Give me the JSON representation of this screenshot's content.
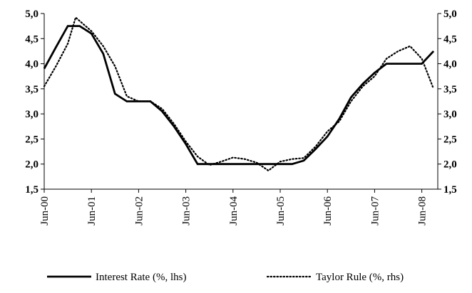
{
  "chart_data": {
    "type": "line",
    "x_tick_labels": [
      "Jun-00",
      "Jun-01",
      "Jun-02",
      "Jun-03",
      "Jun-04",
      "Jun-05",
      "Jun-06",
      "Jun-07",
      "Jun-08"
    ],
    "y_tick_labels": [
      "1,5",
      "2,0",
      "2,5",
      "3,0",
      "3,5",
      "4,0",
      "4,5",
      "5,0"
    ],
    "ylim_left": [
      1.5,
      5.0
    ],
    "ylim_right": [
      1.5,
      5.0
    ],
    "grid": false,
    "legend_position": "bottom",
    "series": [
      {
        "name": "Interest Rate (%, lhs)",
        "style": "solid",
        "color": "#000000",
        "axis": "left",
        "points": [
          [
            "2000-06",
            3.9
          ],
          [
            "2000-09",
            4.33
          ],
          [
            "2000-12",
            4.75
          ],
          [
            "2001-03",
            4.75
          ],
          [
            "2001-06",
            4.6
          ],
          [
            "2001-09",
            4.2
          ],
          [
            "2001-12",
            3.4
          ],
          [
            "2002-03",
            3.25
          ],
          [
            "2002-06",
            3.25
          ],
          [
            "2002-09",
            3.25
          ],
          [
            "2002-12",
            3.05
          ],
          [
            "2003-03",
            2.75
          ],
          [
            "2003-06",
            2.4
          ],
          [
            "2003-09",
            2.0
          ],
          [
            "2003-12",
            2.0
          ],
          [
            "2004-03",
            2.0
          ],
          [
            "2004-06",
            2.0
          ],
          [
            "2004-09",
            2.0
          ],
          [
            "2004-12",
            2.0
          ],
          [
            "2005-03",
            2.0
          ],
          [
            "2005-06",
            2.0
          ],
          [
            "2005-09",
            2.0
          ],
          [
            "2005-12",
            2.07
          ],
          [
            "2006-03",
            2.3
          ],
          [
            "2006-06",
            2.55
          ],
          [
            "2006-09",
            2.9
          ],
          [
            "2006-12",
            3.33
          ],
          [
            "2007-03",
            3.6
          ],
          [
            "2007-06",
            3.82
          ],
          [
            "2007-09",
            4.0
          ],
          [
            "2007-12",
            4.0
          ],
          [
            "2008-03",
            4.0
          ],
          [
            "2008-06",
            4.0
          ],
          [
            "2008-09",
            4.25
          ]
        ]
      },
      {
        "name": "Taylor Rule (%, rhs)",
        "style": "dotted",
        "color": "#000000",
        "axis": "right",
        "points": [
          [
            "2000-06",
            3.55
          ],
          [
            "2000-09",
            3.95
          ],
          [
            "2000-12",
            4.4
          ],
          [
            "2001-02",
            4.92
          ],
          [
            "2001-06",
            4.65
          ],
          [
            "2001-09",
            4.35
          ],
          [
            "2001-12",
            3.95
          ],
          [
            "2002-03",
            3.35
          ],
          [
            "2002-06",
            3.25
          ],
          [
            "2002-09",
            3.25
          ],
          [
            "2002-12",
            3.1
          ],
          [
            "2003-03",
            2.8
          ],
          [
            "2003-06",
            2.45
          ],
          [
            "2003-09",
            2.15
          ],
          [
            "2003-12",
            1.98
          ],
          [
            "2004-03",
            2.05
          ],
          [
            "2004-06",
            2.13
          ],
          [
            "2004-09",
            2.1
          ],
          [
            "2004-12",
            2.03
          ],
          [
            "2005-03",
            1.87
          ],
          [
            "2005-06",
            2.05
          ],
          [
            "2005-09",
            2.1
          ],
          [
            "2005-12",
            2.12
          ],
          [
            "2006-03",
            2.35
          ],
          [
            "2006-06",
            2.65
          ],
          [
            "2006-09",
            2.85
          ],
          [
            "2006-12",
            3.25
          ],
          [
            "2007-03",
            3.55
          ],
          [
            "2007-06",
            3.75
          ],
          [
            "2007-09",
            4.1
          ],
          [
            "2007-12",
            4.25
          ],
          [
            "2008-03",
            4.35
          ],
          [
            "2008-06",
            4.1
          ],
          [
            "2008-09",
            3.5
          ]
        ]
      }
    ]
  }
}
